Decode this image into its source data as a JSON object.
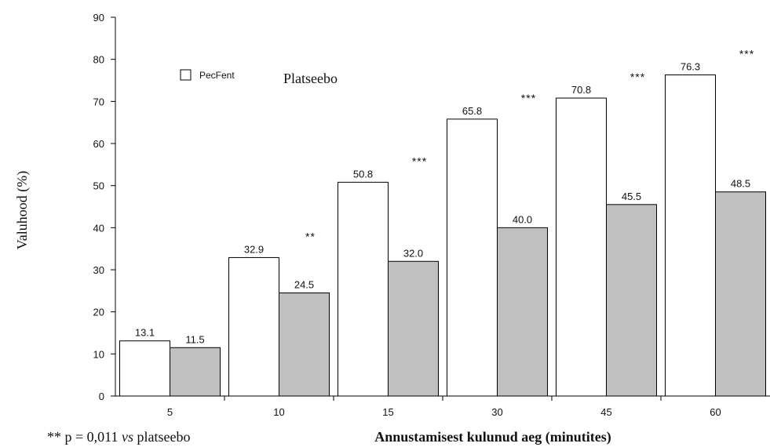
{
  "chart_data": {
    "type": "bar",
    "categories": [
      "5",
      "10",
      "15",
      "30",
      "45",
      "60"
    ],
    "series": [
      {
        "name": "PecFent",
        "values": [
          13.1,
          32.9,
          50.8,
          65.8,
          70.8,
          76.3
        ],
        "labels": [
          "13.1",
          "32.9",
          "50.8",
          "65.8",
          "70.8",
          "76.3"
        ],
        "color": "#ffffff"
      },
      {
        "name": "Platseebo",
        "values": [
          11.5,
          24.5,
          32.0,
          40.0,
          45.5,
          48.5
        ],
        "labels": [
          "11.5",
          "24.5",
          "32.0",
          "40.0",
          "45.5",
          "48.5"
        ],
        "color": "#c0c0c0"
      }
    ],
    "significance": [
      "",
      "**",
      "***",
      "***",
      "***",
      "***"
    ],
    "ylabel": "Valuhood (%)",
    "xlabel": "Annustamisest kulunud aeg (minutites)",
    "ylim": [
      0,
      90
    ],
    "yticks": [
      0,
      10,
      20,
      30,
      40,
      50,
      60,
      70,
      80,
      90
    ],
    "grid": false,
    "legend_position": "top-left"
  },
  "footnote": {
    "prefix": "** p = 0,011 ",
    "italic": "vs",
    "suffix": " platseebo"
  }
}
